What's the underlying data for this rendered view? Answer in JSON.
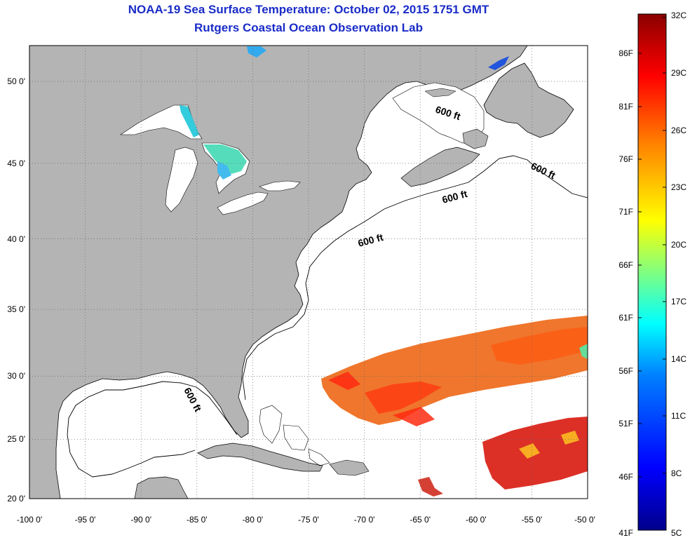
{
  "header": {
    "title": "NOAA-19 Sea Surface Temperature:  October 02, 2015 1751 GMT",
    "subtitle": "Rutgers Coastal Ocean Observation Lab"
  },
  "map": {
    "lon_range": [
      -100,
      -50
    ],
    "lat_range": [
      20,
      52.5
    ],
    "lon_ticks": [
      {
        "v": -100,
        "label": "-100 0'"
      },
      {
        "v": -95,
        "label": "-95 0'"
      },
      {
        "v": -90,
        "label": "-90 0'"
      },
      {
        "v": -85,
        "label": "-85 0'"
      },
      {
        "v": -80,
        "label": "-80 0'"
      },
      {
        "v": -75,
        "label": "-75 0'"
      },
      {
        "v": -70,
        "label": "-70 0'"
      },
      {
        "v": -65,
        "label": "-65 0'"
      },
      {
        "v": -60,
        "label": "-60 0'"
      },
      {
        "v": -55,
        "label": "-55 0'"
      },
      {
        "v": -50,
        "label": "-50 0'"
      }
    ],
    "lat_ticks": [
      {
        "v": 20,
        "label": "20 0'"
      },
      {
        "v": 25,
        "label": "25 0'"
      },
      {
        "v": 30,
        "label": "30 0'"
      },
      {
        "v": 35,
        "label": "35 0'"
      },
      {
        "v": 40,
        "label": "40 0'"
      },
      {
        "v": 45,
        "label": "45 0'"
      },
      {
        "v": 50,
        "label": "50 0'"
      }
    ],
    "grid": true,
    "contour_labels": [
      "600 ft",
      "600 ft",
      "600 ft",
      "600 ft",
      "600 ft"
    ],
    "colors": {
      "land": "#b4b4b4",
      "ocean": "#ffffff",
      "coast": "#000000",
      "grid": "#666666"
    }
  },
  "colorbar": {
    "celsius": [
      "32C",
      "29C",
      "26C",
      "23C",
      "20C",
      "17C",
      "14C",
      "11C",
      "8C",
      "5C"
    ],
    "fahrenheit": [
      "86F",
      "81F",
      "76F",
      "71F",
      "66F",
      "61F",
      "56F",
      "51F",
      "46F",
      "41F"
    ],
    "range_c": [
      5,
      32
    ],
    "colormap": [
      "#00008b",
      "#0000ff",
      "#0080ff",
      "#00ffff",
      "#80ff80",
      "#ffff00",
      "#ff8000",
      "#ff0000",
      "#8b0000"
    ]
  }
}
